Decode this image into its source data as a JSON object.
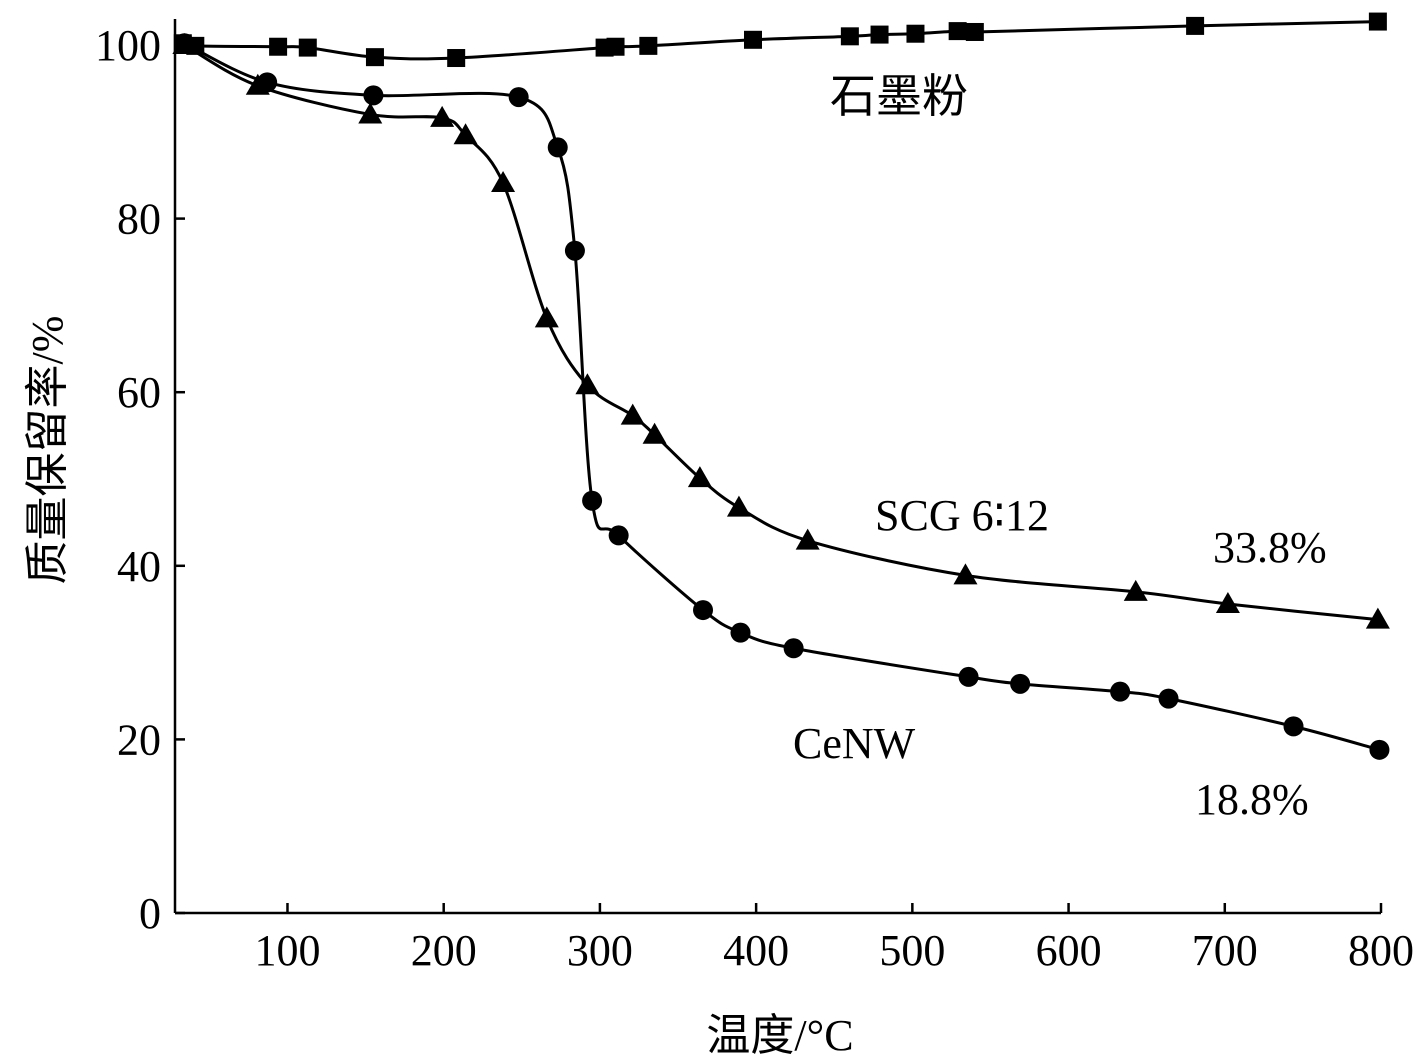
{
  "chart_data": {
    "type": "line",
    "title": "",
    "xlabel": "温度/°C",
    "ylabel": "质量保留率/%",
    "xlim": [
      28,
      800
    ],
    "ylim": [
      0,
      103
    ],
    "xticks": [
      100,
      200,
      300,
      400,
      500,
      600,
      700,
      800
    ],
    "yticks": [
      0,
      20,
      40,
      60,
      80,
      100
    ],
    "grid": false,
    "series": [
      {
        "name": "石墨粉",
        "marker": "square",
        "x": [
          33,
          41,
          94,
          113,
          156,
          208,
          303,
          310,
          331,
          398,
          460,
          479,
          502,
          529,
          540,
          681,
          798
        ],
        "y": [
          100.2,
          99.9,
          99.8,
          99.7,
          98.6,
          98.5,
          99.7,
          99.8,
          99.9,
          100.6,
          101.0,
          101.2,
          101.3,
          101.6,
          101.5,
          102.2,
          102.7
        ]
      },
      {
        "name": "CeNW",
        "marker": "circle",
        "x": [
          34,
          87,
          155,
          248,
          273,
          284,
          295,
          312,
          366,
          390,
          424,
          536,
          569,
          633,
          664,
          744,
          799
        ],
        "y": [
          100.2,
          95.7,
          94.2,
          94.0,
          88.2,
          76.3,
          47.5,
          43.5,
          34.9,
          32.3,
          30.5,
          27.2,
          26.4,
          25.5,
          24.7,
          21.5,
          18.8
        ]
      },
      {
        "name": "SCG 6∶12",
        "marker": "triangle",
        "x": [
          34,
          81,
          153,
          199,
          214,
          238,
          266,
          292,
          321,
          335,
          364,
          389,
          433,
          534,
          643,
          702,
          798
        ],
        "y": [
          100.0,
          95.3,
          92.0,
          91.6,
          89.6,
          84.1,
          68.5,
          60.8,
          57.3,
          55.1,
          50.1,
          46.7,
          42.9,
          38.9,
          37.0,
          35.6,
          33.8
        ]
      }
    ],
    "annotations": {
      "graphite_label": "石墨粉",
      "scg_label": "SCG 6∶12",
      "scg_final": "33.8%",
      "cenw_label": "CeNW",
      "cenw_final": "18.8%"
    }
  }
}
